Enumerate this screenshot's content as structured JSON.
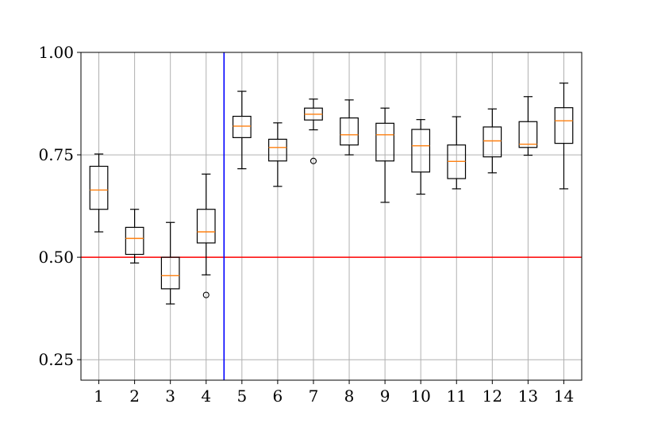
{
  "chart_data": {
    "type": "boxplot",
    "title": "",
    "xlabel": "",
    "ylabel": "",
    "categories": [
      "1",
      "2",
      "3",
      "4",
      "5",
      "6",
      "7",
      "8",
      "9",
      "10",
      "11",
      "12",
      "13",
      "14"
    ],
    "ylim": [
      0.2,
      1.0
    ],
    "yticks": [
      0.25,
      0.5,
      0.75,
      1.0
    ],
    "ytick_labels": [
      "0.25",
      "0.50",
      "0.75",
      "1.00"
    ],
    "grid": true,
    "boxes": [
      {
        "category": "1",
        "whisker_low": 0.562,
        "q1": 0.617,
        "median": 0.664,
        "q3": 0.722,
        "whisker_high": 0.752,
        "outliers": []
      },
      {
        "category": "2",
        "whisker_low": 0.486,
        "q1": 0.507,
        "median": 0.546,
        "q3": 0.573,
        "whisker_high": 0.617,
        "outliers": []
      },
      {
        "category": "3",
        "whisker_low": 0.386,
        "q1": 0.423,
        "median": 0.455,
        "q3": 0.5,
        "whisker_high": 0.585,
        "outliers": []
      },
      {
        "category": "4",
        "whisker_low": 0.457,
        "q1": 0.535,
        "median": 0.562,
        "q3": 0.617,
        "whisker_high": 0.703,
        "outliers": [
          0.408
        ]
      },
      {
        "category": "5",
        "whisker_low": 0.716,
        "q1": 0.792,
        "median": 0.82,
        "q3": 0.844,
        "whisker_high": 0.905,
        "outliers": []
      },
      {
        "category": "6",
        "whisker_low": 0.673,
        "q1": 0.735,
        "median": 0.768,
        "q3": 0.788,
        "whisker_high": 0.828,
        "outliers": []
      },
      {
        "category": "7",
        "whisker_low": 0.811,
        "q1": 0.835,
        "median": 0.849,
        "q3": 0.864,
        "whisker_high": 0.886,
        "outliers": [
          0.735
        ]
      },
      {
        "category": "8",
        "whisker_low": 0.75,
        "q1": 0.774,
        "median": 0.799,
        "q3": 0.84,
        "whisker_high": 0.884,
        "outliers": []
      },
      {
        "category": "9",
        "whisker_low": 0.634,
        "q1": 0.735,
        "median": 0.799,
        "q3": 0.827,
        "whisker_high": 0.864,
        "outliers": []
      },
      {
        "category": "10",
        "whisker_low": 0.654,
        "q1": 0.708,
        "median": 0.772,
        "q3": 0.812,
        "whisker_high": 0.836,
        "outliers": []
      },
      {
        "category": "11",
        "whisker_low": 0.667,
        "q1": 0.692,
        "median": 0.734,
        "q3": 0.774,
        "whisker_high": 0.843,
        "outliers": []
      },
      {
        "category": "12",
        "whisker_low": 0.706,
        "q1": 0.745,
        "median": 0.784,
        "q3": 0.818,
        "whisker_high": 0.862,
        "outliers": []
      },
      {
        "category": "13",
        "whisker_low": 0.749,
        "q1": 0.768,
        "median": 0.776,
        "q3": 0.831,
        "whisker_high": 0.892,
        "outliers": []
      },
      {
        "category": "14",
        "whisker_low": 0.667,
        "q1": 0.778,
        "median": 0.833,
        "q3": 0.865,
        "whisker_high": 0.925,
        "outliers": []
      }
    ],
    "hline": {
      "y": 0.5,
      "color": "#ff0000"
    },
    "vline": {
      "x_between": [
        4,
        5
      ],
      "color": "#0000ff"
    },
    "box_color": "#000000",
    "median_color": "#ff7f0e"
  }
}
